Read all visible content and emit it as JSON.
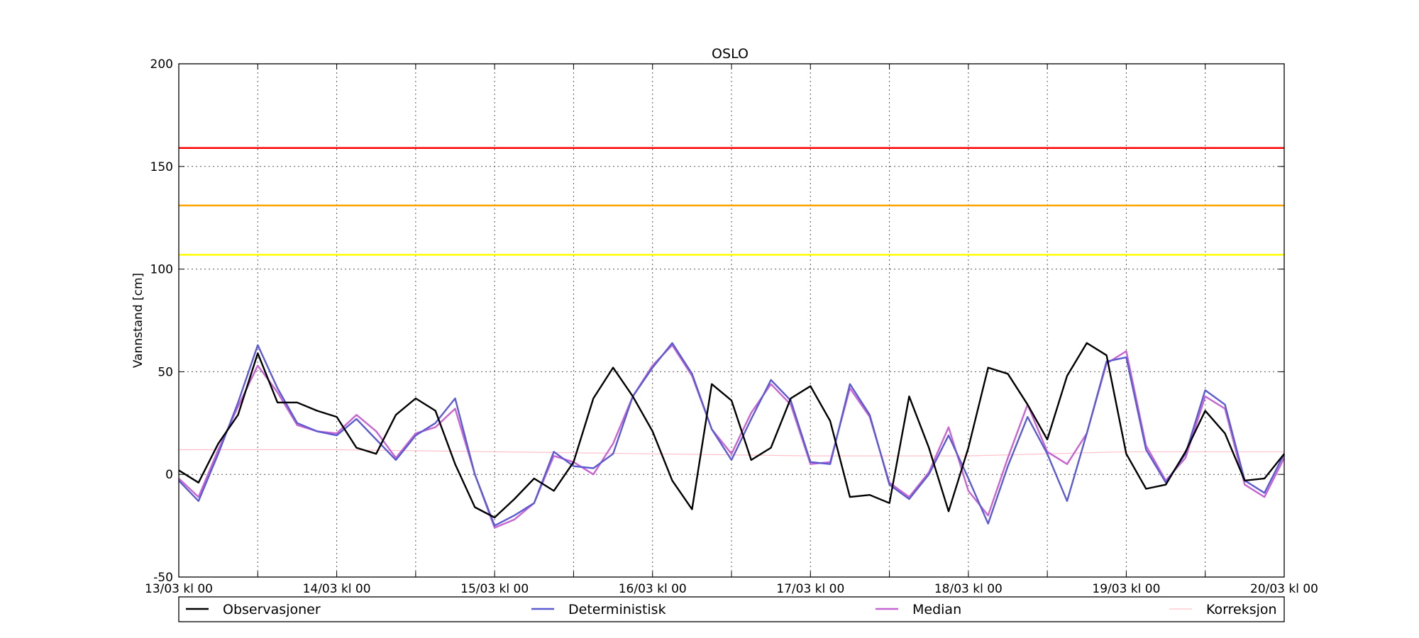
{
  "chart_data": {
    "type": "line",
    "title": "OSLO",
    "xlabel": "",
    "ylabel": "Vannstand [cm]",
    "ylim": [
      -50,
      200
    ],
    "yticks": [
      -50,
      0,
      50,
      100,
      150,
      200
    ],
    "xlim": [
      "13/03 kl 00",
      "20/03 kl 00"
    ],
    "x_tick_labels": [
      "13/03 kl 00",
      "14/03 kl 00",
      "15/03 kl 00",
      "16/03 kl 00",
      "17/03 kl 00",
      "18/03 kl 00",
      "19/03 kl 00",
      "20/03 kl 00"
    ],
    "x_unit": "hours from 13/03 kl 00",
    "grid": true,
    "legend_position": "bottom",
    "thresholds": [
      {
        "value": 159,
        "color": "#ff0000"
      },
      {
        "value": 131,
        "color": "#ffa500"
      },
      {
        "value": 107,
        "color": "#ffff00"
      }
    ],
    "series": [
      {
        "name": "Observasjoner",
        "color": "#000000",
        "x": [
          0,
          3,
          6,
          9,
          12,
          15,
          18,
          21,
          24,
          27,
          30,
          33,
          36,
          39,
          42,
          45,
          48,
          51,
          54,
          57,
          60,
          63,
          66,
          69,
          72,
          75,
          78,
          81,
          84,
          87,
          90,
          93,
          96,
          99,
          102,
          105,
          108,
          111,
          114,
          117,
          120,
          123,
          126,
          129,
          132,
          135,
          138,
          141,
          144,
          147,
          150,
          153,
          156,
          159,
          162,
          165,
          168
        ],
        "values": [
          2,
          -4,
          15,
          29,
          59,
          35,
          35,
          31,
          28,
          13,
          10,
          29,
          37,
          31,
          5,
          -16,
          -21,
          -12,
          -2,
          -8,
          6,
          37,
          52,
          38,
          21,
          -3,
          -17,
          44,
          36,
          7,
          13,
          37,
          43,
          26,
          -11,
          -10,
          -14,
          38,
          13,
          -18,
          13,
          52,
          49,
          34,
          17,
          48,
          64,
          58,
          10,
          -7,
          -5,
          11,
          31,
          20,
          -3,
          -2,
          10
        ],
        "_note_x_unit": "x values are hours after 13/03 kl 00"
      },
      {
        "name": "Deterministisk",
        "color": "#5a5ad2",
        "x": [
          0,
          3,
          6,
          9,
          12,
          15,
          18,
          21,
          24,
          27,
          30,
          33,
          36,
          39,
          42,
          45,
          48,
          51,
          54,
          57,
          60,
          63,
          66,
          69,
          72,
          75,
          78,
          81,
          84,
          87,
          90,
          93,
          96,
          99,
          102,
          105,
          108,
          111,
          114,
          117,
          120,
          123,
          126,
          129,
          132,
          135,
          138,
          141,
          144,
          147,
          150,
          153,
          156,
          159,
          162,
          165,
          168
        ],
        "values": [
          -3,
          -13,
          10,
          35,
          63,
          42,
          25,
          21,
          19,
          27,
          17,
          7,
          19,
          25,
          37,
          0,
          -25,
          -20,
          -14,
          11,
          4,
          3,
          10,
          38,
          52,
          64,
          49,
          22,
          7,
          27,
          46,
          36,
          6,
          5,
          44,
          29,
          -5,
          -12,
          0,
          19,
          -2,
          -24,
          4,
          28,
          10,
          -13,
          20,
          55,
          57,
          12,
          -4,
          10,
          41,
          34,
          -3,
          -9,
          10
        ],
        "_note_x_unit": "x values are hours after 13/03 kl 00"
      },
      {
        "name": "Median",
        "color": "#c864d2",
        "x": [
          0,
          3,
          6,
          9,
          12,
          15,
          18,
          21,
          24,
          27,
          30,
          33,
          36,
          39,
          42,
          45,
          48,
          51,
          54,
          57,
          60,
          63,
          66,
          69,
          72,
          75,
          78,
          81,
          84,
          87,
          90,
          93,
          96,
          99,
          102,
          105,
          108,
          111,
          114,
          117,
          120,
          123,
          126,
          129,
          132,
          135,
          138,
          141,
          144,
          147,
          150,
          153,
          156,
          159,
          162,
          165,
          168
        ],
        "values": [
          -2,
          -11,
          12,
          33,
          53,
          40,
          24,
          21,
          20,
          29,
          21,
          8,
          20,
          23,
          32,
          0,
          -26,
          -22,
          -14,
          9,
          6,
          0,
          15,
          38,
          53,
          63,
          48,
          22,
          10,
          30,
          44,
          34,
          5,
          6,
          42,
          28,
          -4,
          -11,
          1,
          23,
          -8,
          -20,
          8,
          34,
          11,
          5,
          20,
          54,
          60,
          14,
          -3,
          8,
          38,
          32,
          -5,
          -11,
          8
        ],
        "_note_x_unit": "x values are hours after 13/03 kl 00"
      },
      {
        "name": "Korreksjon",
        "color": "#ffc0cb",
        "x": [
          0,
          24,
          48,
          72,
          96,
          120,
          144,
          168
        ],
        "values": [
          12,
          12,
          11,
          10,
          9,
          9,
          11,
          11
        ],
        "_note_x_unit": "x values are hours after 13/03 kl 00"
      }
    ]
  }
}
